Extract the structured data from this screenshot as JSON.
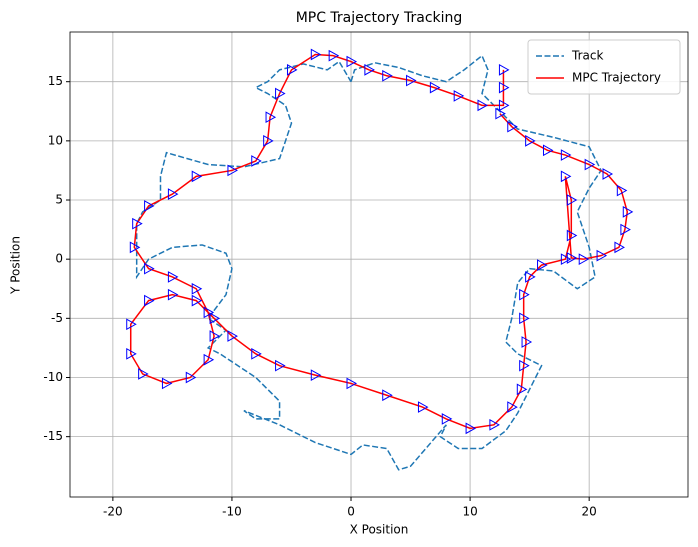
{
  "chart_data": {
    "type": "line",
    "title": "MPC Trajectory Tracking",
    "xlabel": "X Position",
    "ylabel": "Y Position",
    "xlim": [
      -23.6,
      28.3
    ],
    "ylim": [
      -20.1,
      19.2
    ],
    "xticks": [
      -20,
      -10,
      0,
      10,
      20
    ],
    "yticks": [
      -15,
      -10,
      -5,
      0,
      5,
      10,
      15
    ],
    "grid": true,
    "legend": "upper right",
    "series": [
      {
        "name": "Track",
        "color": "#1f77b4",
        "linestyle": "dashed",
        "x": [
          0,
          0.3,
          2,
          4,
          6,
          8,
          9.5,
          11,
          11.5,
          11,
          12,
          14,
          17,
          20,
          21,
          20,
          19,
          19.5,
          20,
          20.5,
          19,
          17,
          15,
          14,
          13.5,
          13,
          14,
          16,
          15,
          14,
          13,
          11,
          9,
          7.5,
          8,
          5,
          4,
          3,
          1,
          0,
          -3,
          -6,
          -9,
          -8,
          -6,
          -6,
          -8,
          -11,
          -12,
          -10.5,
          -12,
          -10.5,
          -10,
          -10.5,
          -12.5,
          -15,
          -17,
          -18,
          -18,
          -17.5,
          -16,
          -16,
          -15.5,
          -12,
          -9,
          -6,
          -5.5,
          -5,
          -5.5,
          -7,
          -8,
          -7,
          -6,
          -4,
          -2,
          -1,
          0
        ],
        "y": [
          15,
          16,
          16.6,
          16.2,
          15.5,
          15,
          16,
          17.2,
          16,
          14,
          13,
          11,
          10.3,
          9.5,
          7.5,
          6,
          4,
          2.5,
          1,
          -1.5,
          -2.5,
          -1,
          -0.8,
          -2,
          -5,
          -7,
          -8,
          -9,
          -11,
          -13,
          -14.5,
          -16,
          -16,
          -15,
          -14,
          -17.5,
          -17.8,
          -16,
          -15.7,
          -16.5,
          -15.5,
          -14,
          -12.8,
          -13.5,
          -13.5,
          -12,
          -10,
          -8,
          -7.5,
          -6,
          -5,
          -3,
          -0.8,
          0.5,
          1.2,
          1,
          0,
          -1.5,
          3,
          4,
          5,
          7,
          9,
          8,
          7.8,
          8.5,
          10,
          11.5,
          13,
          14,
          14.5,
          15,
          16,
          16.5,
          16,
          16.7,
          15
        ]
      },
      {
        "name": "MPC Trajectory",
        "color": "red",
        "linestyle": "solid",
        "marker_color": "blue",
        "x": [
          12.8,
          12.8,
          12.8,
          11,
          9,
          7,
          5,
          3,
          1.5,
          0,
          -1.5,
          -3,
          -5,
          -6,
          -6.8,
          -7,
          -8,
          -10,
          -13,
          -15,
          -17,
          -18,
          -18.2,
          -17,
          -15,
          -13,
          -12,
          -11.5,
          -12,
          -13.5,
          -15.5,
          -17.5,
          -18.5,
          -18.5,
          -17,
          -15,
          -13,
          -11.5,
          -10,
          -8,
          -6,
          -3,
          0,
          3,
          6,
          8,
          10,
          12,
          13.5,
          14.3,
          14.5,
          14.7,
          14.5,
          14.5,
          15,
          16,
          18,
          18.5,
          18.5,
          18,
          18.5,
          19.5,
          21,
          22.5,
          23,
          23.2,
          22.7,
          21.5,
          20,
          18,
          16.5,
          15,
          13.5,
          12.5
        ],
        "y": [
          16,
          14.5,
          13,
          13,
          13.8,
          14.5,
          15.1,
          15.5,
          16,
          16.7,
          17.2,
          17.3,
          16,
          14,
          12,
          10,
          8.3,
          7.5,
          7,
          5.5,
          4.5,
          3,
          1,
          -0.8,
          -1.5,
          -2.5,
          -4.5,
          -6.5,
          -8.5,
          -10,
          -10.5,
          -9.7,
          -8,
          -5.5,
          -3.5,
          -3,
          -3.5,
          -5,
          -6.5,
          -8,
          -9,
          -9.8,
          -10.5,
          -11.5,
          -12.5,
          -13.5,
          -14.3,
          -14,
          -12.5,
          -11,
          -9,
          -7,
          -5,
          -3,
          -1.5,
          -0.5,
          0,
          2,
          5,
          7,
          0.1,
          0,
          0.3,
          1,
          2.5,
          4,
          5.8,
          7.2,
          8,
          8.8,
          9.2,
          10,
          11.2,
          12.3
        ]
      }
    ]
  }
}
